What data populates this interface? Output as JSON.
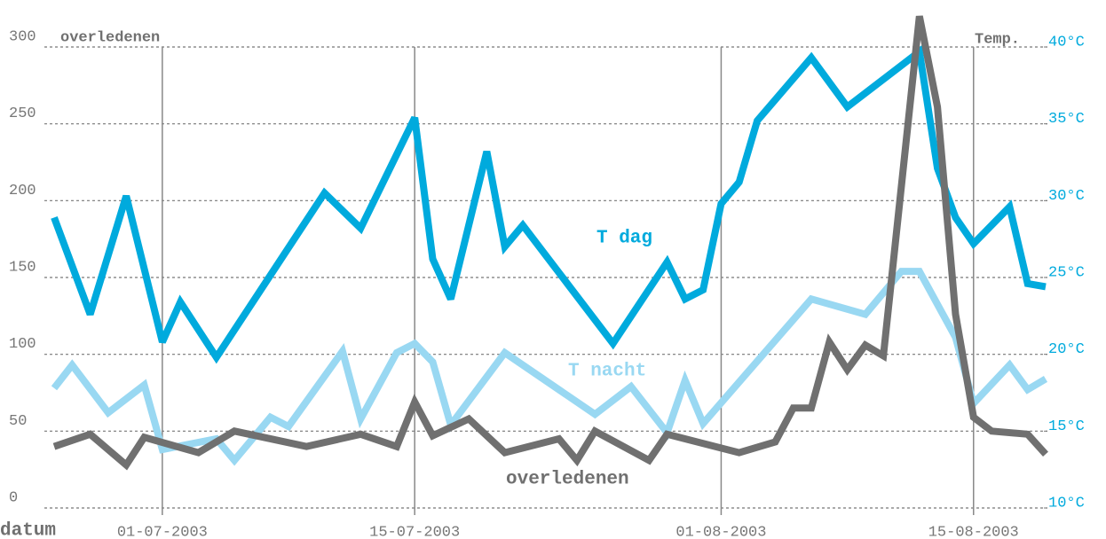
{
  "chart_data": {
    "type": "line",
    "ylabel": "overledenen",
    "y2label": "Temp.",
    "xlabel": "datum",
    "xlim": [
      "2003-06-25",
      "2003-08-19"
    ],
    "xticks": [
      {
        "value": "2003-07-01",
        "label": "01-07-2003"
      },
      {
        "value": "2003-07-15",
        "label": "15-07-2003"
      },
      {
        "value": "2003-08-01",
        "label": "01-08-2003"
      },
      {
        "value": "2003-08-15",
        "label": "15-08-2003"
      }
    ],
    "ylim": [
      0,
      300
    ],
    "yticks": [
      0,
      50,
      100,
      150,
      200,
      250,
      300
    ],
    "y2lim": [
      10,
      40
    ],
    "y2ticks": [
      {
        "value": 10,
        "label": "10°C"
      },
      {
        "value": 15,
        "label": "15°C"
      },
      {
        "value": 20,
        "label": "20°C"
      },
      {
        "value": 25,
        "label": "25°C"
      },
      {
        "value": 30,
        "label": "30°C"
      },
      {
        "value": 35,
        "label": "35°C"
      },
      {
        "value": 40,
        "label": "40°C"
      }
    ],
    "grid": true,
    "series": [
      {
        "name": "T dag",
        "color": "#00aadd",
        "axis": "y2",
        "x": [
          "2003-06-25",
          "2003-06-27",
          "2003-06-29",
          "2003-07-01",
          "2003-07-02",
          "2003-07-04",
          "2003-07-10",
          "2003-07-12",
          "2003-07-15",
          "2003-07-16",
          "2003-07-17",
          "2003-07-19",
          "2003-07-20",
          "2003-07-21",
          "2003-07-26",
          "2003-07-29",
          "2003-07-30",
          "2003-07-31",
          "2003-08-01",
          "2003-08-02",
          "2003-08-03",
          "2003-08-06",
          "2003-08-08",
          "2003-08-12",
          "2003-08-13",
          "2003-08-14",
          "2003-08-15",
          "2003-08-17",
          "2003-08-18",
          "2003-08-19"
        ],
        "values": [
          28.9,
          22.6,
          30.3,
          20.8,
          23.4,
          19.8,
          30.5,
          28.2,
          35.4,
          26.2,
          23.6,
          33.2,
          27.0,
          28.4,
          20.7,
          26.0,
          23.6,
          24.2,
          29.8,
          31.2,
          35.2,
          39.3,
          36.1,
          39.7,
          32.1,
          28.9,
          27.2,
          29.6,
          24.6,
          24.4
        ]
      },
      {
        "name": "T nacht",
        "color": "#99d8f2",
        "axis": "y2",
        "x": [
          "2003-06-25",
          "2003-06-26",
          "2003-06-28",
          "2003-06-30",
          "2003-07-01",
          "2003-07-04",
          "2003-07-05",
          "2003-07-07",
          "2003-07-08",
          "2003-07-11",
          "2003-07-12",
          "2003-07-14",
          "2003-07-15",
          "2003-07-16",
          "2003-07-17",
          "2003-07-20",
          "2003-07-25",
          "2003-07-27",
          "2003-07-29",
          "2003-07-30",
          "2003-07-31",
          "2003-08-06",
          "2003-08-09",
          "2003-08-11",
          "2003-08-12",
          "2003-08-14",
          "2003-08-15",
          "2003-08-17",
          "2003-08-18",
          "2003-08-19"
        ],
        "values": [
          17.8,
          19.3,
          16.2,
          18.0,
          13.8,
          14.5,
          13.1,
          15.9,
          15.3,
          20.2,
          15.8,
          20.1,
          20.7,
          19.5,
          15.4,
          20.1,
          16.1,
          17.9,
          14.9,
          18.3,
          15.5,
          23.6,
          22.6,
          25.4,
          25.4,
          21.1,
          16.8,
          19.3,
          17.7,
          18.4
        ]
      },
      {
        "name": "overledenen",
        "color": "#707070",
        "axis": "y",
        "x": [
          "2003-06-25",
          "2003-06-27",
          "2003-06-29",
          "2003-06-30",
          "2003-07-03",
          "2003-07-05",
          "2003-07-09",
          "2003-07-12",
          "2003-07-14",
          "2003-07-15",
          "2003-07-16",
          "2003-07-18",
          "2003-07-20",
          "2003-07-23",
          "2003-07-24",
          "2003-07-25",
          "2003-07-28",
          "2003-07-29",
          "2003-08-02",
          "2003-08-04",
          "2003-08-05",
          "2003-08-06",
          "2003-08-07",
          "2003-08-08",
          "2003-08-09",
          "2003-08-10",
          "2003-08-12",
          "2003-08-13",
          "2003-08-14",
          "2003-08-15",
          "2003-08-16",
          "2003-08-18",
          "2003-08-19"
        ],
        "values": [
          40,
          48,
          28,
          46,
          36,
          50,
          40,
          48,
          40,
          69,
          47,
          58,
          36,
          45,
          31,
          50,
          31,
          48,
          36,
          43,
          65,
          65,
          108,
          90,
          106,
          99,
          320,
          261,
          126,
          59,
          50,
          48,
          35
        ]
      }
    ]
  }
}
